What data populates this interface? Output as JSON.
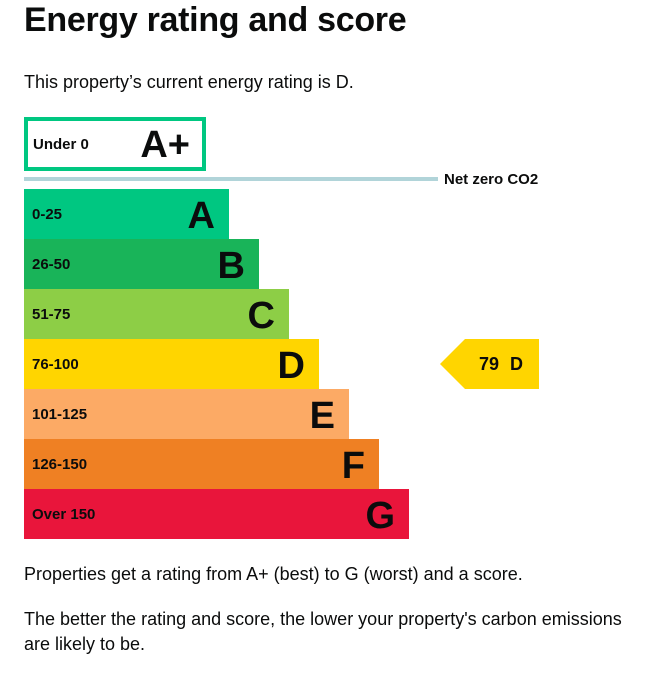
{
  "page": {
    "title": "Energy rating and score",
    "intro": "This property’s current energy rating is D.",
    "note_1": "Properties get a rating from A+ (best) to G (worst) and a score.",
    "note_2": "The better the rating and score, the lower your property's carbon emissions are likely to be."
  },
  "chart_data": {
    "type": "bar",
    "orientation": "horizontal",
    "top_band": {
      "range": "Under 0",
      "rating": "A+",
      "color": "#00c781"
    },
    "net_zero_label": "Net zero CO2",
    "net_zero_line_color": "#b1d4d9",
    "bands": [
      {
        "range": "0-25",
        "rating": "A",
        "color": "#00c781"
      },
      {
        "range": "26-50",
        "rating": "B",
        "color": "#19b459"
      },
      {
        "range": "51-75",
        "rating": "C",
        "color": "#8dce46"
      },
      {
        "range": "76-100",
        "rating": "D",
        "color": "#ffd500"
      },
      {
        "range": "101-125",
        "rating": "E",
        "color": "#fcaa65"
      },
      {
        "range": "126-150",
        "rating": "F",
        "color": "#ef8023"
      },
      {
        "range": "Over 150",
        "rating": "G",
        "color": "#e9153b"
      }
    ],
    "current": {
      "score": 79,
      "rating": "D",
      "color": "#ffd500"
    }
  }
}
